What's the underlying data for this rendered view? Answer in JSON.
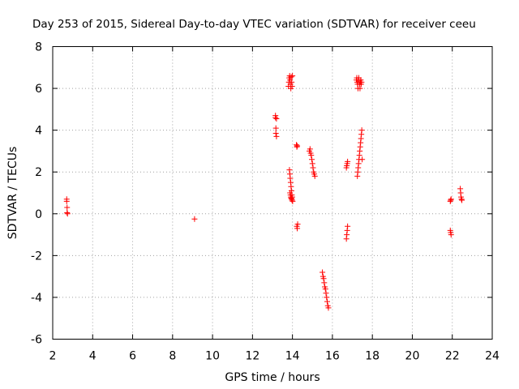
{
  "chart_data": {
    "type": "scatter",
    "title": "Day 253 of 2015, Sidereal Day-to-day VTEC variation (SDTVAR) for receiver ceeu",
    "xlabel": "GPS time / hours",
    "ylabel": "SDTVAR / TECUs",
    "xlim": [
      2,
      24
    ],
    "ylim": [
      -6,
      8
    ],
    "xticks": [
      "2",
      "4",
      "6",
      "8",
      "10",
      "12",
      "14",
      "16",
      "18",
      "20",
      "22",
      "24"
    ],
    "yticks": [
      "-6",
      "-4",
      "-2",
      "0",
      "2",
      "4",
      "6",
      "8"
    ],
    "grid": true,
    "marker": "+",
    "color": "#ff0000",
    "series": [
      {
        "x": [
          2.7,
          2.7,
          2.72,
          2.72,
          2.74,
          9.1,
          13.15,
          13.15,
          13.17,
          13.17,
          13.2,
          13.2,
          13.8,
          13.82,
          13.84,
          13.86,
          13.88,
          13.9,
          13.92,
          13.94,
          13.96,
          13.98,
          14.0,
          13.85,
          13.87,
          13.89,
          13.91,
          13.93,
          13.95,
          13.97,
          13.99,
          14.01,
          13.88,
          13.9,
          13.92,
          13.94,
          13.96,
          13.98,
          14.2,
          14.22,
          14.24,
          14.26,
          14.22,
          14.24,
          14.85,
          14.88,
          14.91,
          14.94,
          14.97,
          15.0,
          15.03,
          15.06,
          15.09,
          15.12,
          15.5,
          15.53,
          15.56,
          15.59,
          15.62,
          15.65,
          15.68,
          15.71,
          15.74,
          15.77,
          15.8,
          16.7,
          16.72,
          16.74,
          16.76,
          16.7,
          16.72,
          16.74,
          16.76,
          17.2,
          17.22,
          17.24,
          17.26,
          17.28,
          17.3,
          17.32,
          17.34,
          17.36,
          17.38,
          17.4,
          17.42,
          17.44,
          17.46,
          17.25,
          17.27,
          17.29,
          17.31,
          17.33,
          17.35,
          17.37,
          17.39,
          17.41,
          17.43,
          17.45,
          17.47,
          17.49,
          21.9,
          21.92,
          21.94,
          21.9,
          21.92,
          21.94,
          22.4,
          22.42,
          22.44,
          22.46,
          22.48
        ],
        "y": [
          0.7,
          0.6,
          0.3,
          0.05,
          0.0,
          -0.25,
          4.7,
          4.6,
          4.1,
          3.85,
          3.7,
          4.55,
          6.1,
          6.3,
          6.5,
          6.6,
          6.4,
          6.2,
          6.0,
          6.55,
          6.3,
          6.1,
          6.6,
          2.1,
          1.9,
          1.7,
          1.5,
          1.3,
          1.1,
          0.9,
          0.8,
          0.6,
          1.0,
          0.9,
          0.8,
          0.75,
          0.7,
          0.65,
          3.3,
          3.2,
          3.25,
          -0.5,
          -0.6,
          -0.7,
          3.0,
          3.1,
          2.9,
          2.8,
          2.6,
          2.4,
          2.2,
          2.0,
          1.9,
          1.8,
          -2.8,
          -3.0,
          -3.1,
          -3.3,
          -3.5,
          -3.6,
          -3.8,
          -4.0,
          -4.2,
          -4.4,
          -4.5,
          -1.2,
          -1.0,
          -0.8,
          -0.6,
          2.2,
          2.3,
          2.4,
          2.5,
          6.4,
          6.5,
          6.3,
          6.2,
          6.0,
          6.4,
          6.5,
          6.3,
          6.2,
          6.0,
          6.3,
          6.4,
          6.2,
          6.3,
          1.8,
          2.0,
          2.2,
          2.4,
          2.6,
          2.8,
          3.0,
          3.2,
          3.4,
          3.6,
          3.8,
          4.0,
          2.6,
          0.6,
          0.65,
          0.7,
          -0.8,
          -0.9,
          -1.0,
          1.2,
          1.0,
          0.8,
          0.7,
          0.65
        ]
      }
    ]
  }
}
